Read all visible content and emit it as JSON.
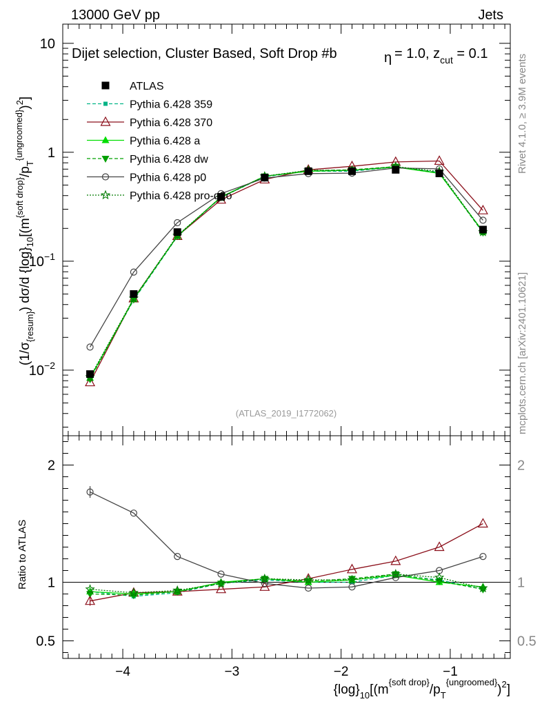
{
  "header": {
    "left": "13000 GeV pp",
    "right": "Jets",
    "title": "Dijet selection, Cluster Based, Soft Drop #b",
    "title_params": "= 1.0, z",
    "title_params_sub": "cut",
    "title_params_end": " = 0.1",
    "beta_glyph": "η"
  },
  "side_labels": {
    "rivet": "Rivet 4.1.0, ≥ 3.9M events",
    "mcplots": "mcplots.cern.ch [arXiv:2401.10621]"
  },
  "watermark": "(ATLAS_2019_I1772062)",
  "axis_labels": {
    "y_main": "(1/σ{resum}) dσ/d {log}10[(m{soft drop}/pT{ungroomed})2]",
    "y_main_parts": {
      "p1": "(1/σ",
      "p2": "{resum}",
      "p3": ") dσ/d {log}",
      "p4": "10",
      "p5": "[(m",
      "p6": "{soft drop}",
      "p7": "/p",
      "p8": "T",
      "p9": "{ungroomed}",
      "p10": ")",
      "p11": "2",
      "p12": "]"
    },
    "y_ratio": "Ratio to ATLAS",
    "x_parts": {
      "p1": "{log}",
      "p2": "10",
      "p3": "[(m",
      "p4": "{soft drop}",
      "p5": "/p",
      "p6": "T",
      "p7": "{ungroomed}",
      "p8": ")",
      "p9": "2",
      "p10": "]"
    }
  },
  "colors": {
    "atlas": "#000000",
    "p359": "#00b386",
    "p370": "#8b0f1a",
    "pa": "#00dd00",
    "pdw": "#00a000",
    "pp0": "#444444",
    "pq2o": "#007a00"
  },
  "chart_data": {
    "type": "line",
    "log_y_main": true,
    "main_ylim": [
      0.0025,
      15
    ],
    "main_yticks": [
      {
        "value": 0.01,
        "base": "10",
        "exp": "−2"
      },
      {
        "value": 0.1,
        "base": "10",
        "exp": "−1"
      },
      {
        "value": 1,
        "label": "1"
      },
      {
        "value": 10,
        "label": "10"
      }
    ],
    "ratio_ylim": [
      0.35,
      2.25
    ],
    "ratio_yticks": [
      {
        "value": 0.5,
        "label": "0.5"
      },
      {
        "value": 1,
        "label": "1"
      },
      {
        "value": 2,
        "label": "2"
      }
    ],
    "xlim": [
      -4.55,
      -0.45
    ],
    "xticks": [
      {
        "value": -4,
        "label": "−4"
      },
      {
        "value": -3,
        "label": "−3"
      },
      {
        "value": -2,
        "label": "−2"
      },
      {
        "value": -1,
        "label": "−1"
      }
    ],
    "x": [
      -4.3,
      -3.9,
      -3.5,
      -3.1,
      -2.7,
      -2.3,
      -1.9,
      -1.5,
      -1.1,
      -0.7
    ],
    "atlas": {
      "name": "ATLAS",
      "values": [
        0.0092,
        0.05,
        0.185,
        0.39,
        0.585,
        0.67,
        0.67,
        0.69,
        0.64,
        0.195
      ]
    },
    "series": [
      {
        "key": "p359",
        "name": "Pythia 6.428 359",
        "marker": "square",
        "dash": "5,3",
        "ratio": [
          0.92,
          0.88,
          0.91,
          0.99,
          1.02,
          1.0,
          1.0,
          1.06,
          1.02,
          0.94
        ]
      },
      {
        "key": "p370",
        "name": "Pythia 6.428 370",
        "marker": "triangle-open",
        "dash": "",
        "ratio": [
          0.84,
          0.91,
          0.92,
          0.94,
          0.96,
          1.03,
          1.11,
          1.18,
          1.3,
          1.5
        ]
      },
      {
        "key": "pa",
        "name": "Pythia 6.428 a",
        "marker": "triangle",
        "dash": "",
        "ratio": [
          0.92,
          0.9,
          0.92,
          1.0,
          1.03,
          1.0,
          1.02,
          1.06,
          1.0,
          0.96
        ]
      },
      {
        "key": "pdw",
        "name": "Pythia 6.428 dw",
        "marker": "triangle-down",
        "dash": "5,3",
        "ratio": [
          0.9,
          0.89,
          0.92,
          0.99,
          1.03,
          1.01,
          1.03,
          1.07,
          1.01,
          0.94
        ]
      },
      {
        "key": "pp0",
        "name": "Pythia 6.428 p0",
        "marker": "circle-open",
        "dash": "",
        "ratio": [
          1.77,
          1.59,
          1.22,
          1.07,
          0.99,
          0.95,
          0.96,
          1.04,
          1.1,
          1.22
        ]
      },
      {
        "key": "pq2o",
        "name": "Pythia 6.428 pro-q2o",
        "marker": "star",
        "dash": "2,2",
        "ratio": [
          0.94,
          0.91,
          0.93,
          0.99,
          1.03,
          1.02,
          1.02,
          1.07,
          1.04,
          0.95
        ]
      }
    ],
    "legend_position": "top-left"
  }
}
